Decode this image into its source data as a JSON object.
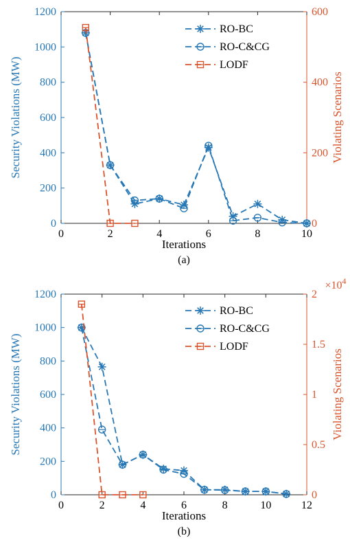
{
  "colors": {
    "blue": "#2878b5",
    "orange": "#d9532b",
    "axis": "#262626",
    "legend_border": "#bdbdbd"
  },
  "chart_data": [
    {
      "type": "line",
      "caption": "(a)",
      "xlabel": "Iterations",
      "ylabel": "Security Violations (MW)",
      "y2label": "Violating Scenarios",
      "xlim": [
        0,
        10
      ],
      "xticks": [
        0,
        2,
        4,
        6,
        8,
        10
      ],
      "ylim": [
        0,
        1200
      ],
      "yticks": [
        0,
        200,
        400,
        600,
        800,
        1000,
        1200
      ],
      "y2lim": [
        0,
        600
      ],
      "y2ticks": [
        0,
        200,
        400,
        600
      ],
      "y2tick_labels": [
        "0",
        "200",
        "400",
        "600"
      ],
      "y2_multiplier": "",
      "legend_position": "top-right",
      "series": [
        {
          "name": "RO-BC",
          "axis": "left",
          "marker": "asterisk",
          "color": "blue",
          "x": [
            1,
            2,
            3,
            4,
            5,
            6,
            7,
            8,
            9,
            10
          ],
          "y": [
            1080,
            330,
            110,
            140,
            105,
            430,
            40,
            110,
            20,
            0
          ]
        },
        {
          "name": "RO-C&CG",
          "axis": "left",
          "marker": "circle",
          "color": "blue",
          "x": [
            1,
            2,
            3,
            4,
            5,
            6,
            7,
            8,
            9,
            10
          ],
          "y": [
            1080,
            330,
            130,
            140,
            85,
            440,
            15,
            32,
            5,
            0
          ]
        },
        {
          "name": "LODF",
          "axis": "right",
          "marker": "square",
          "color": "orange",
          "x": [
            1,
            2,
            3
          ],
          "y": [
            555,
            0,
            0
          ]
        }
      ]
    },
    {
      "type": "line",
      "caption": "(b)",
      "xlabel": "Iterations",
      "ylabel": "Security Violations (MW)",
      "y2label": "Violating Scenarios",
      "xlim": [
        0,
        12
      ],
      "xticks": [
        0,
        2,
        4,
        6,
        8,
        10,
        12
      ],
      "ylim": [
        0,
        1200
      ],
      "yticks": [
        0,
        200,
        400,
        600,
        800,
        1000,
        1200
      ],
      "y2lim": [
        0,
        20000
      ],
      "y2ticks": [
        0,
        5000,
        10000,
        15000,
        20000
      ],
      "y2tick_labels": [
        "0",
        "0.5",
        "1",
        "1.5",
        "2"
      ],
      "y2_multiplier": "×10",
      "y2_multiplier_exp": "4",
      "legend_position": "top-right",
      "series": [
        {
          "name": "RO-BC",
          "axis": "left",
          "marker": "asterisk",
          "color": "blue",
          "x": [
            1,
            2,
            3,
            4,
            5,
            6,
            7,
            8,
            9,
            10,
            11
          ],
          "y": [
            1000,
            765,
            180,
            240,
            155,
            145,
            30,
            30,
            20,
            20,
            5
          ]
        },
        {
          "name": "RO-C&CG",
          "axis": "left",
          "marker": "circle",
          "color": "blue",
          "x": [
            1,
            2,
            3,
            4,
            5,
            6,
            7,
            8,
            9,
            10,
            11
          ],
          "y": [
            1000,
            390,
            180,
            240,
            150,
            125,
            30,
            28,
            20,
            20,
            5
          ]
        },
        {
          "name": "LODF",
          "axis": "right",
          "marker": "square",
          "color": "orange",
          "x": [
            1,
            2,
            3,
            4
          ],
          "y": [
            19000,
            0,
            0,
            0
          ]
        }
      ]
    }
  ]
}
